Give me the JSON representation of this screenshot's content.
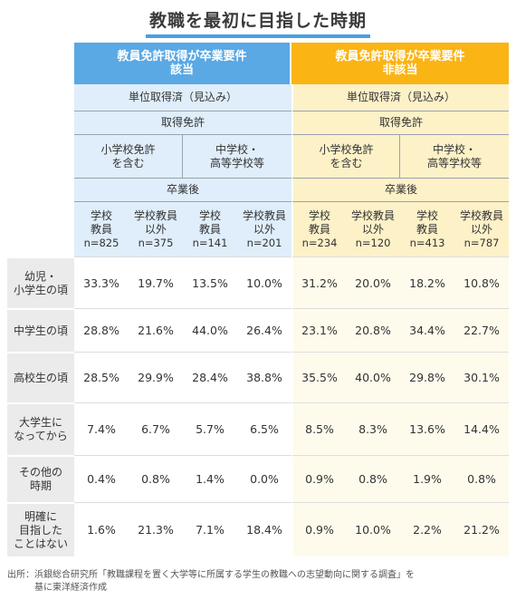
{
  "title": "教職を最初に目指した時期",
  "groups": {
    "left": {
      "line1": "教員免許取得が卒業要件",
      "line2": "該当"
    },
    "right": {
      "line1": "教員免許取得が卒業要件",
      "line2": "非該当"
    }
  },
  "level1": "単位取得済（見込み）",
  "level2": "取得免許",
  "licenses": [
    {
      "line1": "小学校免許",
      "line2": "を含む"
    },
    {
      "line1": "中学校・",
      "line2": "高等学校等"
    }
  ],
  "level3": "卒業後",
  "columns": [
    {
      "line1": "学校",
      "line2": "教員",
      "n": "n=825"
    },
    {
      "line1": "学校教員",
      "line2": "以外",
      "n": "n=375"
    },
    {
      "line1": "学校",
      "line2": "教員",
      "n": "n=141"
    },
    {
      "line1": "学校教員",
      "line2": "以外",
      "n": "n=201"
    },
    {
      "line1": "学校",
      "line2": "教員",
      "n": "n=234"
    },
    {
      "line1": "学校教員",
      "line2": "以外",
      "n": "n=120"
    },
    {
      "line1": "学校",
      "line2": "教員",
      "n": "n=413"
    },
    {
      "line1": "学校教員",
      "line2": "以外",
      "n": "n=787"
    }
  ],
  "rows": [
    {
      "label1": "幼児・",
      "label2": "小学生の頃",
      "values": [
        "33.3%",
        "19.7%",
        "13.5%",
        "10.0%",
        "31.2%",
        "20.0%",
        "18.2%",
        "10.8%"
      ]
    },
    {
      "label1": "中学生の頃",
      "label2": "",
      "values": [
        "28.8%",
        "21.6%",
        "44.0%",
        "26.4%",
        "23.1%",
        "20.8%",
        "34.4%",
        "22.7%"
      ]
    },
    {
      "label1": "高校生の頃",
      "label2": "",
      "values": [
        "28.5%",
        "29.9%",
        "28.4%",
        "38.8%",
        "35.5%",
        "40.0%",
        "29.8%",
        "30.1%"
      ]
    },
    {
      "label1": "大学生に",
      "label2": "なってから",
      "values": [
        "7.4%",
        "6.7%",
        "5.7%",
        "6.5%",
        "8.5%",
        "8.3%",
        "13.6%",
        "14.4%"
      ]
    },
    {
      "label1": "その他の",
      "label2": "時期",
      "values": [
        "0.4%",
        "0.8%",
        "1.4%",
        "0.0%",
        "0.9%",
        "0.8%",
        "1.9%",
        "0.8%"
      ]
    },
    {
      "label1": "明確に",
      "label2": "目指した",
      "label3": "ことはない",
      "values": [
        "1.6%",
        "21.3%",
        "7.1%",
        "18.4%",
        "0.9%",
        "10.0%",
        "2.2%",
        "21.2%"
      ]
    }
  ],
  "footer": {
    "line1": "出所：浜銀総合研究所「教職課程を置く大学等に所属する学生の教職への志望動向に関する調査」を",
    "line2": "基に東洋経済作成"
  },
  "colors": {
    "accent_blue": "#5aa8e4",
    "accent_orange": "#fab414",
    "light_blue": "#dfeefa",
    "light_orange": "#fdf1c8",
    "title_underline": "#4aa0e0"
  },
  "chart_data": {
    "type": "table",
    "title": "教職を最初に目指した時期",
    "column_groups": [
      "教員免許取得が卒業要件該当",
      "教員免許取得が卒業要件非該当"
    ],
    "columns": [
      "該当/小学校免許を含む/学校教員 n=825",
      "該当/小学校免許を含む/学校教員以外 n=375",
      "該当/中学校・高等学校等/学校教員 n=141",
      "該当/中学校・高等学校等/学校教員以外 n=201",
      "非該当/小学校免許を含む/学校教員 n=234",
      "非該当/小学校免許を含む/学校教員以外 n=120",
      "非該当/中学校・高等学校等/学校教員 n=413",
      "非該当/中学校・高等学校等/学校教員以外 n=787"
    ],
    "row_labels": [
      "幼児・小学生の頃",
      "中学生の頃",
      "高校生の頃",
      "大学生になってから",
      "その他の時期",
      "明確に目指したことはない"
    ],
    "values": [
      [
        33.3,
        19.7,
        13.5,
        10.0,
        31.2,
        20.0,
        18.2,
        10.8
      ],
      [
        28.8,
        21.6,
        44.0,
        26.4,
        23.1,
        20.8,
        34.4,
        22.7
      ],
      [
        28.5,
        29.9,
        28.4,
        38.8,
        35.5,
        40.0,
        29.8,
        30.1
      ],
      [
        7.4,
        6.7,
        5.7,
        6.5,
        8.5,
        8.3,
        13.6,
        14.4
      ],
      [
        0.4,
        0.8,
        1.4,
        0.0,
        0.9,
        0.8,
        1.9,
        0.8
      ],
      [
        1.6,
        21.3,
        7.1,
        18.4,
        0.9,
        10.0,
        2.2,
        21.2
      ]
    ],
    "unit": "%"
  }
}
